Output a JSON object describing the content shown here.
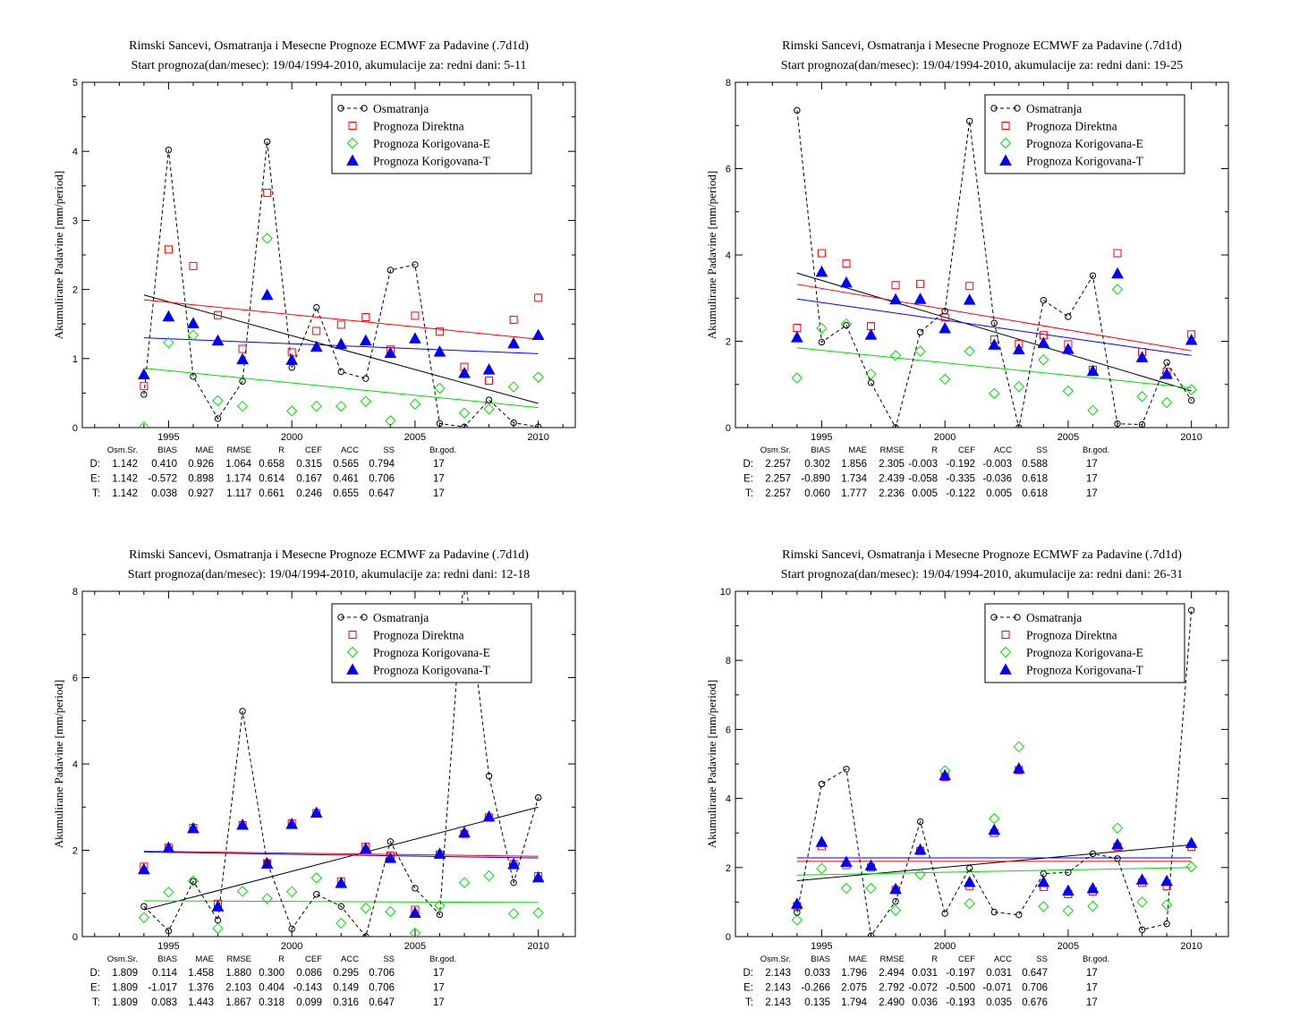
{
  "colors": {
    "observed": "#000000",
    "direct": "#ff0000",
    "corrected_e": "#00dd00",
    "corrected_t": "#0000ff"
  },
  "stats_header": [
    "Osm.Sr.",
    "BIAS",
    "MAE",
    "RMSE",
    "R",
    "CEF",
    "ACC",
    "SS",
    "Br.god."
  ],
  "chart_data": [
    {
      "type": "scatter",
      "title": "Rimski Sancevi, Osmatranja i Mesecne Prognoze ECMWF za Padavine (.7d1d)",
      "subtitle": "Start prognoza(dan/mesec): 19/04/1994-2010, akumulacije za: redni dani: 5-11",
      "ylabel": "Akumulirane Padavine [mm/period]",
      "xlim": [
        1991.5,
        2011.5
      ],
      "xticks": [
        1995,
        2000,
        2005,
        2010
      ],
      "ylim": [
        0,
        5
      ],
      "yticks": [
        0,
        1,
        2,
        3,
        4,
        5
      ],
      "legend_position": "top-right",
      "x": [
        1994,
        1995,
        1996,
        1997,
        1998,
        1999,
        2000,
        2001,
        2002,
        2003,
        2004,
        2005,
        2006,
        2007,
        2008,
        2009,
        2010
      ],
      "series": [
        {
          "name": "Osmatranja",
          "marker": "circle",
          "values": [
            0.48,
            4.02,
            0.74,
            0.13,
            0.67,
            4.14,
            0.87,
            1.74,
            0.81,
            0.71,
            2.28,
            2.36,
            0.06,
            0.01,
            0.4,
            0.07,
            0.01
          ],
          "trend": [
            1.92,
            0.35
          ]
        },
        {
          "name": "Prognoza Direktna",
          "marker": "square",
          "values": [
            0.6,
            2.58,
            2.34,
            1.63,
            1.14,
            3.4,
            1.09,
            1.4,
            1.49,
            1.6,
            1.13,
            1.62,
            1.39,
            0.88,
            0.68,
            1.56,
            1.88
          ],
          "trend": [
            1.85,
            1.28
          ]
        },
        {
          "name": "Prognoza Korigovana-E",
          "marker": "diamond",
          "values": [
            0.01,
            1.23,
            1.34,
            0.39,
            0.31,
            2.74,
            0.24,
            0.31,
            0.31,
            0.38,
            0.1,
            0.34,
            0.57,
            0.21,
            0.27,
            0.59,
            0.73
          ],
          "trend": [
            0.86,
            0.29
          ]
        },
        {
          "name": "Prognoza Korigovana-T",
          "marker": "triangle",
          "values": [
            0.77,
            1.61,
            1.51,
            1.26,
            0.99,
            1.92,
            0.98,
            1.17,
            1.21,
            1.26,
            1.08,
            1.29,
            1.1,
            0.79,
            0.84,
            1.22,
            1.34
          ],
          "trend": [
            1.3,
            1.07
          ]
        }
      ],
      "stats": [
        {
          "label": "D:",
          "values": [
            "1.142",
            "0.410",
            "0.926",
            "1.064",
            "0.658",
            "0.315",
            "0.565",
            "0.794",
            "17"
          ]
        },
        {
          "label": "E:",
          "values": [
            "1.142",
            "-0.572",
            "0.898",
            "1.174",
            "0.614",
            "0.167",
            "0.461",
            "0.706",
            "17"
          ]
        },
        {
          "label": "T:",
          "values": [
            "1.142",
            "0.038",
            "0.927",
            "1.117",
            "0.661",
            "0.246",
            "0.655",
            "0.647",
            "17"
          ]
        }
      ]
    },
    {
      "type": "scatter",
      "title": "Rimski Sancevi, Osmatranja i Mesecne Prognoze ECMWF za Padavine (.7d1d)",
      "subtitle": "Start prognoza(dan/mesec): 19/04/1994-2010, akumulacije za: redni dani: 19-25",
      "ylabel": "Akumulirane Padavine [mm/period]",
      "xlim": [
        1991.5,
        2011.5
      ],
      "xticks": [
        1995,
        2000,
        2005,
        2010
      ],
      "ylim": [
        0,
        8
      ],
      "yticks": [
        0,
        2,
        4,
        6,
        8
      ],
      "legend_position": "top-right",
      "x": [
        1994,
        1995,
        1996,
        1997,
        1998,
        1999,
        2000,
        2001,
        2002,
        2003,
        2004,
        2005,
        2006,
        2007,
        2008,
        2009,
        2010
      ],
      "series": [
        {
          "name": "Osmatranja",
          "marker": "circle",
          "values": [
            7.35,
            1.98,
            2.37,
            1.04,
            0.0,
            2.21,
            2.7,
            7.1,
            2.42,
            0.0,
            2.95,
            2.57,
            3.52,
            0.09,
            0.07,
            1.51,
            0.63
          ],
          "trend": [
            3.58,
            0.85
          ]
        },
        {
          "name": "Prognoza Direktna",
          "marker": "square",
          "values": [
            2.31,
            4.04,
            3.8,
            2.35,
            3.3,
            3.33,
            2.55,
            3.28,
            2.04,
            1.94,
            2.14,
            1.93,
            1.34,
            4.04,
            1.75,
            1.29,
            2.16
          ],
          "trend": [
            3.32,
            1.78
          ]
        },
        {
          "name": "Prognoza Korigovana-E",
          "marker": "diamond",
          "values": [
            1.15,
            2.3,
            2.4,
            1.24,
            1.67,
            1.77,
            1.12,
            1.77,
            0.79,
            0.95,
            1.57,
            0.85,
            0.4,
            3.2,
            0.72,
            0.58,
            0.88
          ],
          "trend": [
            1.85,
            0.92
          ]
        },
        {
          "name": "Prognoza Korigovana-T",
          "marker": "triangle",
          "values": [
            2.09,
            3.61,
            3.36,
            2.15,
            2.97,
            2.98,
            2.3,
            2.96,
            1.92,
            1.81,
            1.96,
            1.82,
            1.31,
            3.57,
            1.63,
            1.24,
            2.03
          ],
          "trend": [
            2.98,
            1.67
          ]
        }
      ],
      "stats": [
        {
          "label": "D:",
          "values": [
            "2.257",
            "0.302",
            "1.856",
            "2.305",
            "-0.003",
            "-0.192",
            "-0.003",
            "0.588",
            "17"
          ]
        },
        {
          "label": "E:",
          "values": [
            "2.257",
            "-0.890",
            "1.734",
            "2.439",
            "-0.058",
            "-0.335",
            "-0.036",
            "0.618",
            "17"
          ]
        },
        {
          "label": "T:",
          "values": [
            "2.257",
            "0.060",
            "1.777",
            "2.236",
            "0.005",
            "-0.122",
            "0.005",
            "0.618",
            "17"
          ]
        }
      ]
    },
    {
      "type": "scatter",
      "title": "Rimski Sancevi, Osmatranja i Mesecne Prognoze ECMWF za Padavine (.7d1d)",
      "subtitle": "Start prognoza(dan/mesec): 19/04/1994-2010, akumulacije za: redni dani: 12-18",
      "ylabel": "Akumulirane Padavine [mm/period]",
      "xlim": [
        1991.5,
        2011.5
      ],
      "xticks": [
        1995,
        2000,
        2005,
        2010
      ],
      "ylim": [
        0,
        8
      ],
      "yticks": [
        0,
        2,
        4,
        6,
        8
      ],
      "legend_position": "top-right",
      "x": [
        1994,
        1995,
        1996,
        1997,
        1998,
        1999,
        2000,
        2001,
        2002,
        2003,
        2004,
        2005,
        2006,
        2007,
        2008,
        2009,
        2010
      ],
      "series": [
        {
          "name": "Osmatranja",
          "marker": "circle",
          "values": [
            0.7,
            0.13,
            1.28,
            0.38,
            5.22,
            1.72,
            0.18,
            0.98,
            0.7,
            0.0,
            2.2,
            1.12,
            0.51,
            8.5,
            3.72,
            1.25,
            3.22
          ],
          "trend": [
            0.62,
            3.0
          ]
        },
        {
          "name": "Prognoza Direktna",
          "marker": "square",
          "values": [
            1.62,
            2.06,
            2.52,
            0.76,
            2.58,
            1.7,
            2.62,
            2.86,
            1.28,
            2.08,
            1.88,
            0.62,
            1.9,
            2.38,
            2.76,
            1.68,
            1.4
          ],
          "trend": [
            1.98,
            1.86
          ]
        },
        {
          "name": "Prognoza Korigovana-E",
          "marker": "diamond",
          "values": [
            0.44,
            1.03,
            1.29,
            0.19,
            1.05,
            0.88,
            1.04,
            1.36,
            0.31,
            0.66,
            0.58,
            0.08,
            0.72,
            1.25,
            1.41,
            0.53,
            0.55
          ],
          "trend": [
            0.83,
            0.79
          ]
        },
        {
          "name": "Prognoza Korigovana-T",
          "marker": "triangle",
          "values": [
            1.56,
            2.06,
            2.51,
            0.7,
            2.59,
            1.69,
            2.61,
            2.87,
            1.24,
            2.04,
            1.82,
            0.55,
            1.92,
            2.41,
            2.78,
            1.68,
            1.37
          ],
          "trend": [
            1.96,
            1.82
          ]
        }
      ],
      "stats": [
        {
          "label": "D:",
          "values": [
            "1.809",
            "0.114",
            "1.458",
            "1.880",
            "0.300",
            "0.086",
            "0.295",
            "0.706",
            "17"
          ]
        },
        {
          "label": "E:",
          "values": [
            "1.809",
            "-1.017",
            "1.376",
            "2.103",
            "0.404",
            "-0.143",
            "0.149",
            "0.706",
            "17"
          ]
        },
        {
          "label": "T:",
          "values": [
            "1.809",
            "0.083",
            "1.443",
            "1.867",
            "0.318",
            "0.099",
            "0.316",
            "0.647",
            "17"
          ]
        }
      ]
    },
    {
      "type": "scatter",
      "title": "Rimski Sancevi, Osmatranja i Mesecne Prognoze ECMWF za Padavine (.7d1d)",
      "subtitle": "Start prognoza(dan/mesec): 19/04/1994-2010, akumulacije za: redni dani: 26-31",
      "ylabel": "Akumulirane Padavine [mm/period]",
      "xlim": [
        1991.5,
        2011.5
      ],
      "xticks": [
        1995,
        2000,
        2005,
        2010
      ],
      "ylim": [
        0,
        10
      ],
      "yticks": [
        0,
        2,
        4,
        6,
        8,
        10
      ],
      "legend_position": "top-right",
      "x": [
        1994,
        1995,
        1996,
        1997,
        1998,
        1999,
        2000,
        2001,
        2002,
        2003,
        2004,
        2005,
        2006,
        2007,
        2008,
        2009,
        2010
      ],
      "series": [
        {
          "name": "Osmatranja",
          "marker": "circle",
          "values": [
            0.7,
            4.42,
            4.85,
            0.02,
            1.02,
            3.33,
            0.67,
            1.98,
            0.71,
            0.63,
            1.82,
            1.86,
            2.4,
            2.26,
            0.2,
            0.37,
            9.45
          ],
          "trend": [
            1.62,
            2.66
          ]
        },
        {
          "name": "Prognoza Direktna",
          "marker": "square",
          "values": [
            0.88,
            2.62,
            2.07,
            2.0,
            1.35,
            2.48,
            4.62,
            1.47,
            3.0,
            4.82,
            1.44,
            1.23,
            1.31,
            2.6,
            1.56,
            1.46,
            2.6
          ],
          "trend": [
            2.18,
            2.18
          ]
        },
        {
          "name": "Prognoza Korigovana-E",
          "marker": "diamond",
          "values": [
            0.48,
            1.97,
            1.4,
            1.4,
            0.76,
            1.8,
            4.8,
            0.96,
            3.42,
            5.5,
            0.87,
            0.75,
            0.88,
            3.14,
            1.0,
            0.92,
            2.02
          ],
          "trend": [
            1.78,
            2.0
          ]
        },
        {
          "name": "Prognoza Korigovana-T",
          "marker": "triangle",
          "values": [
            0.95,
            2.74,
            2.16,
            2.06,
            1.38,
            2.52,
            4.67,
            1.58,
            3.09,
            4.87,
            1.58,
            1.33,
            1.4,
            2.67,
            1.65,
            1.61,
            2.71
          ],
          "trend": [
            2.28,
            2.28
          ]
        }
      ],
      "stats": [
        {
          "label": "D:",
          "values": [
            "2.143",
            "0.033",
            "1.796",
            "2.494",
            "0.031",
            "-0.197",
            "0.031",
            "0.647",
            "17"
          ]
        },
        {
          "label": "E:",
          "values": [
            "2.143",
            "-0.266",
            "2.075",
            "2.792",
            "-0.072",
            "-0.500",
            "-0.071",
            "0.706",
            "17"
          ]
        },
        {
          "label": "T:",
          "values": [
            "2.143",
            "0.135",
            "1.794",
            "2.490",
            "0.036",
            "-0.193",
            "0.035",
            "0.676",
            "17"
          ]
        }
      ]
    }
  ]
}
